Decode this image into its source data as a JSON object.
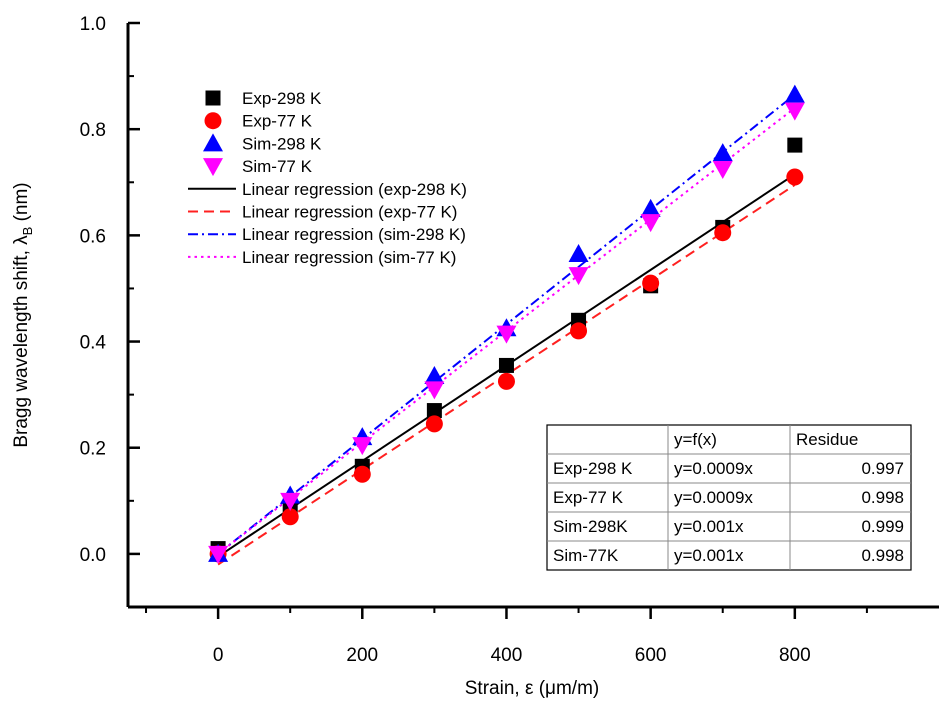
{
  "chart_data": {
    "type": "scatter",
    "xlabel": "Strain, ε (μm/m)",
    "ylabel": "Bragg wavelength shift, λ",
    "ylabel_sub": "B",
    "ylabel_unit": " (nm)",
    "xlim": [
      -125,
      1000
    ],
    "ylim": [
      -0.1,
      1.0
    ],
    "xticks": [
      0,
      200,
      400,
      600,
      800
    ],
    "xtick_labels": [
      "0",
      "200",
      "400",
      "600",
      "800"
    ],
    "yticks": [
      0.0,
      0.2,
      0.4,
      0.6,
      0.8,
      1.0
    ],
    "ytick_labels": [
      "0.0",
      "0.2",
      "0.4",
      "0.6",
      "0.8",
      "1.0"
    ],
    "grid": false,
    "legend_position": "top-left",
    "series": [
      {
        "name": "Exp-298 K",
        "marker": "square",
        "color": "#000000",
        "x": [
          0,
          100,
          200,
          300,
          400,
          500,
          600,
          700,
          800
        ],
        "y": [
          0.01,
          0.09,
          0.165,
          0.27,
          0.355,
          0.44,
          0.505,
          0.615,
          0.77
        ]
      },
      {
        "name": "Exp-77 K",
        "marker": "circle",
        "color": "#ff0000",
        "x": [
          0,
          100,
          200,
          300,
          400,
          500,
          600,
          700,
          800
        ],
        "y": [
          0.0,
          0.07,
          0.15,
          0.245,
          0.325,
          0.42,
          0.51,
          0.605,
          0.71
        ]
      },
      {
        "name": "Sim-298 K",
        "marker": "triangle-up",
        "color": "#0000ff",
        "x": [
          0,
          100,
          200,
          300,
          400,
          500,
          600,
          700,
          800
        ],
        "y": [
          0.0,
          0.11,
          0.22,
          0.335,
          0.425,
          0.565,
          0.65,
          0.755,
          0.865
        ]
      },
      {
        "name": "Sim-77 K",
        "marker": "triangle-down",
        "color": "#ff00ff",
        "x": [
          0,
          100,
          200,
          300,
          400,
          500,
          600,
          700,
          800
        ],
        "y": [
          0.0,
          0.1,
          0.205,
          0.31,
          0.415,
          0.525,
          0.625,
          0.725,
          0.835
        ]
      }
    ],
    "regressions": [
      {
        "name": "Linear regression (exp-298 K)",
        "style": "solid",
        "color": "#000000",
        "x": [
          0,
          800
        ],
        "y": [
          -0.005,
          0.715
        ]
      },
      {
        "name": "Linear regression (exp-77 K)",
        "style": "dash",
        "color": "#ff2020",
        "x": [
          0,
          800
        ],
        "y": [
          -0.02,
          0.695
        ]
      },
      {
        "name": "Linear regression (sim-298 K)",
        "style": "dashdot",
        "color": "#0000ff",
        "x": [
          0,
          800
        ],
        "y": [
          0.0,
          0.865
        ]
      },
      {
        "name": "Linear regression (sim-77 K)",
        "style": "dot",
        "color": "#ff00ff",
        "x": [
          0,
          800
        ],
        "y": [
          0.0,
          0.84
        ]
      }
    ],
    "table": {
      "headers": [
        "",
        "y=f(x)",
        "Residue"
      ],
      "rows": [
        [
          "Exp-298 K",
          "y=0.0009x",
          "0.997"
        ],
        [
          "Exp-77 K",
          "y=0.0009x",
          "0.998"
        ],
        [
          "Sim-298K",
          "y=0.001x",
          "0.999"
        ],
        [
          "Sim-77K",
          "y=0.001x",
          "0.998"
        ]
      ]
    }
  }
}
